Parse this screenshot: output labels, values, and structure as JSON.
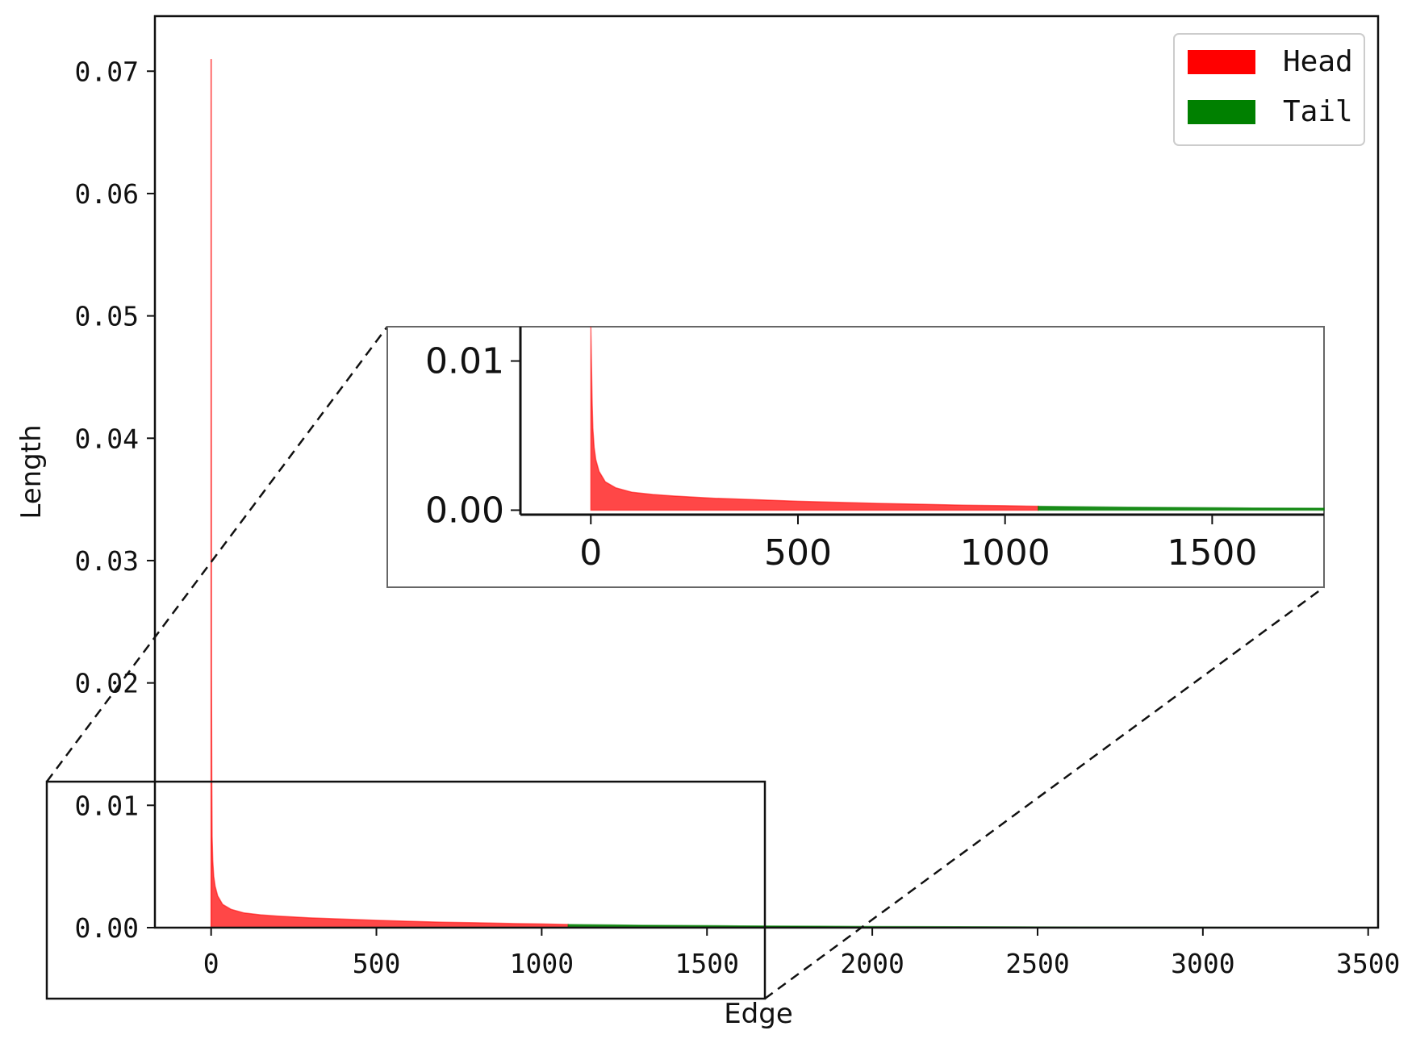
{
  "chart_data": [
    {
      "type": "area",
      "xlabel": "Edge",
      "ylabel": "Length",
      "xlim": [
        -170,
        3530
      ],
      "ylim": [
        0,
        0.0745
      ],
      "x_ticks": [
        0,
        500,
        1000,
        1500,
        2000,
        2500,
        3000,
        3500
      ],
      "x_tick_labels": [
        "0",
        "500",
        "1000",
        "1500",
        "2000",
        "2500",
        "3000",
        "3500"
      ],
      "y_ticks": [
        0.0,
        0.01,
        0.02,
        0.03,
        0.04,
        0.05,
        0.06,
        0.07
      ],
      "y_tick_labels": [
        "0.00",
        "0.01",
        "0.02",
        "0.03",
        "0.04",
        "0.05",
        "0.06",
        "0.07"
      ],
      "grid": false,
      "legend_position": "top-right",
      "series": [
        {
          "name": "Head",
          "color": "#ff0000",
          "x": [
            0,
            1,
            2,
            3,
            5,
            8,
            12,
            20,
            35,
            60,
            100,
            150,
            200,
            300,
            400,
            500,
            600,
            700,
            800,
            900,
            1000,
            1080
          ],
          "y": [
            0.071,
            0.021,
            0.012,
            0.0075,
            0.0055,
            0.0042,
            0.0034,
            0.0026,
            0.0019,
            0.0015,
            0.0012,
            0.00105,
            0.00095,
            0.0008,
            0.0007,
            0.0006,
            0.00052,
            0.00045,
            0.0004,
            0.00034,
            0.0003,
            0.00026
          ]
        },
        {
          "name": "Tail",
          "color": "#008000",
          "x": [
            1080,
            1300,
            1600,
            2000,
            2500,
            3000,
            3350
          ],
          "y": [
            0.00026,
            0.0002,
            0.00015,
            0.0001,
            6e-05,
            3e-05,
            1e-05
          ]
        }
      ]
    },
    {
      "type": "area",
      "xlim": [
        -170,
        1770
      ],
      "ylim": [
        -0.0003,
        0.0123
      ],
      "x_ticks": [
        0,
        500,
        1000,
        1500
      ],
      "x_tick_labels": [
        "0",
        "500",
        "1000",
        "1500"
      ],
      "y_ticks": [
        0.0,
        0.01
      ],
      "y_tick_labels": [
        "0.00",
        "0.01"
      ],
      "grid": false,
      "series": [
        {
          "name": "Head",
          "color": "#ff0000",
          "x": [
            0,
            3,
            5,
            8,
            12,
            20,
            35,
            60,
            100,
            150,
            200,
            300,
            400,
            500,
            600,
            700,
            800,
            900,
            1000,
            1080
          ],
          "y": [
            0.0123,
            0.0075,
            0.0055,
            0.0042,
            0.0034,
            0.0026,
            0.0019,
            0.0015,
            0.0012,
            0.00105,
            0.00095,
            0.0008,
            0.0007,
            0.0006,
            0.00052,
            0.00045,
            0.0004,
            0.00034,
            0.0003,
            0.00026
          ]
        },
        {
          "name": "Tail",
          "color": "#008000",
          "x": [
            1080,
            1300,
            1600,
            1770
          ],
          "y": [
            0.00026,
            0.0002,
            0.00015,
            0.00013
          ]
        }
      ]
    }
  ]
}
